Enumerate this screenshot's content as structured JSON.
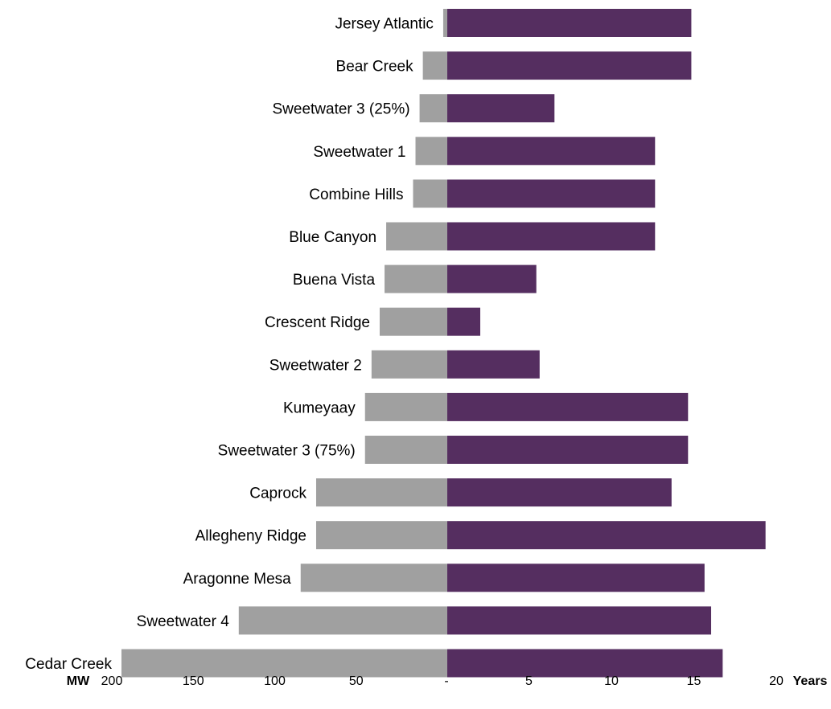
{
  "chart_data": {
    "type": "bar",
    "orientation": "horizontal",
    "layout": "butterfly",
    "categories": [
      "Jersey Atlantic",
      "Bear Creek",
      "Sweetwater 3 (25%)",
      "Sweetwater 1",
      "Combine Hills",
      "Blue Canyon",
      "Buena Vista",
      "Crescent Ridge",
      "Sweetwater 2",
      "Kumeyaay",
      "Sweetwater 3 (75%)",
      "Caprock",
      "Allegheny Ridge",
      "Aragonne Mesa",
      "Sweetwater 4",
      "Cedar Creek"
    ],
    "series": [
      {
        "side": "left",
        "color": "#a0a0a0",
        "values": [
          2.5,
          15,
          17,
          19.5,
          21,
          37.5,
          38.5,
          41.5,
          46.5,
          50.5,
          50.5,
          80.5,
          80.5,
          90,
          128,
          200
        ]
      },
      {
        "side": "right",
        "color": "#552e60",
        "values": [
          14.8,
          14.8,
          6.5,
          12.6,
          12.6,
          12.6,
          5.4,
          2.0,
          5.6,
          14.6,
          14.6,
          13.6,
          19.3,
          15.6,
          16.0,
          16.7
        ]
      }
    ],
    "left_axis": {
      "unit_label": "MW",
      "range": [
        200,
        0
      ],
      "ticks": [
        {
          "value": 200,
          "label": "200"
        },
        {
          "value": 150,
          "label": "150"
        },
        {
          "value": 100,
          "label": "100"
        },
        {
          "value": 50,
          "label": "50"
        }
      ]
    },
    "right_axis": {
      "unit_label": "Years",
      "range": [
        0,
        20
      ],
      "ticks": [
        {
          "value": 0,
          "label": "-"
        },
        {
          "value": 5,
          "label": "5"
        },
        {
          "value": 10,
          "label": "10"
        },
        {
          "value": 15,
          "label": "15"
        },
        {
          "value": 20,
          "label": "20"
        }
      ]
    },
    "grid": false,
    "legend": "none"
  }
}
